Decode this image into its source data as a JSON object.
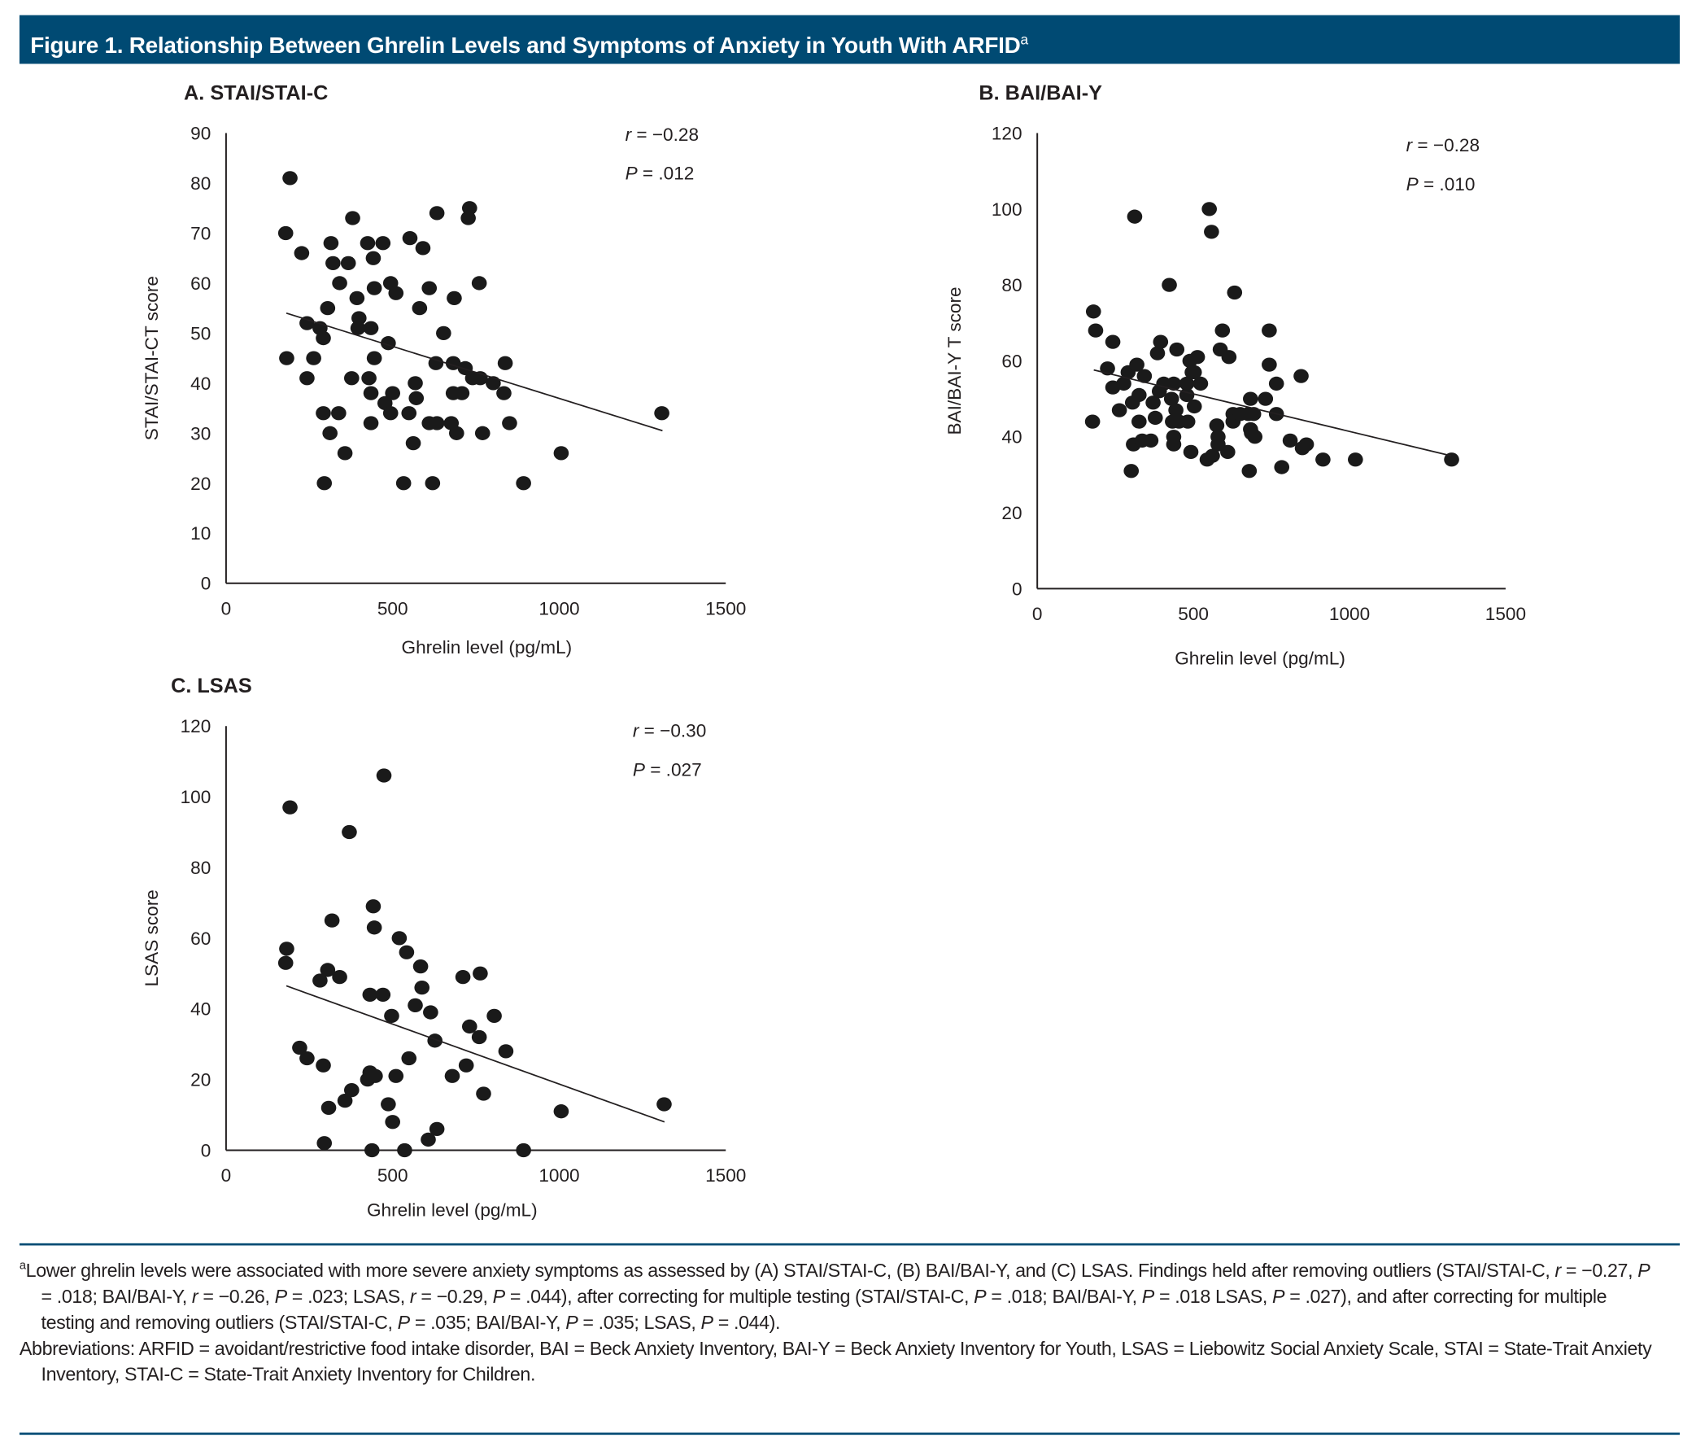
{
  "figure": {
    "title": "Figure 1. Relationship Between Ghrelin Levels and Symptoms of Anxiety in Youth With ARFID",
    "title_sup": "a",
    "header_color": "#004a73"
  },
  "chart_data": [
    {
      "type": "scatter",
      "title": "A. STAI/STAI-C",
      "xlabel": "Ghrelin level (pg/mL)",
      "ylabel": "STAI/STAI-CT score",
      "xlim": [
        0,
        1500
      ],
      "ylim": [
        0,
        90
      ],
      "xticks": [
        "0",
        "500",
        "1000",
        "1500"
      ],
      "yticks": [
        "0",
        "10",
        "20",
        "30",
        "40",
        "50",
        "60",
        "70",
        "80",
        "90"
      ],
      "grid": false,
      "stat_r": "−0.28",
      "stat_p": ".012",
      "trendline": [
        [
          181,
          54
        ],
        [
          1310,
          30.5
        ]
      ],
      "points": [
        [
          192,
          81
        ],
        [
          179,
          70
        ],
        [
          227,
          66
        ],
        [
          182,
          45
        ],
        [
          243,
          52
        ],
        [
          263,
          45
        ],
        [
          243,
          41
        ],
        [
          282,
          51
        ],
        [
          292,
          49
        ],
        [
          305,
          55
        ],
        [
          315,
          68
        ],
        [
          321,
          64
        ],
        [
          341,
          60
        ],
        [
          292,
          34
        ],
        [
          312,
          30
        ],
        [
          338,
          34
        ],
        [
          295,
          20
        ],
        [
          357,
          26
        ],
        [
          367,
          64
        ],
        [
          380,
          73
        ],
        [
          377,
          41
        ],
        [
          393,
          57
        ],
        [
          399,
          53
        ],
        [
          396,
          51
        ],
        [
          425,
          68
        ],
        [
          442,
          65
        ],
        [
          445,
          59
        ],
        [
          471,
          68
        ],
        [
          429,
          41
        ],
        [
          435,
          38
        ],
        [
          445,
          45
        ],
        [
          435,
          32
        ],
        [
          435,
          51
        ],
        [
          487,
          48
        ],
        [
          494,
          60
        ],
        [
          510,
          58
        ],
        [
          500,
          38
        ],
        [
          477,
          36
        ],
        [
          494,
          34
        ],
        [
          552,
          69
        ],
        [
          591,
          67
        ],
        [
          581,
          55
        ],
        [
          568,
          40
        ],
        [
          571,
          37
        ],
        [
          549,
          34
        ],
        [
          562,
          28
        ],
        [
          533,
          20
        ],
        [
          610,
          59
        ],
        [
          610,
          32
        ],
        [
          633,
          32
        ],
        [
          620,
          20
        ],
        [
          633,
          74
        ],
        [
          653,
          50
        ],
        [
          630,
          44
        ],
        [
          685,
          57
        ],
        [
          682,
          44
        ],
        [
          676,
          32
        ],
        [
          692,
          30
        ],
        [
          682,
          38
        ],
        [
          708,
          38
        ],
        [
          718,
          43
        ],
        [
          731,
          75
        ],
        [
          727,
          73
        ],
        [
          740,
          41
        ],
        [
          763,
          41
        ],
        [
          760,
          60
        ],
        [
          802,
          40
        ],
        [
          770,
          30
        ],
        [
          834,
          38
        ],
        [
          838,
          44
        ],
        [
          851,
          32
        ],
        [
          893,
          20
        ],
        [
          1006,
          26
        ],
        [
          1308,
          34
        ]
      ]
    },
    {
      "type": "scatter",
      "title": "B. BAI/BAI-Y",
      "xlabel": "Ghrelin level (pg/mL)",
      "ylabel": "BAI/BAI-Y T score",
      "xlim": [
        0,
        1500
      ],
      "ylim": [
        0,
        120
      ],
      "xticks": [
        "0",
        "500",
        "1000",
        "1500"
      ],
      "yticks": [
        "0",
        "20",
        "40",
        "60",
        "80",
        "100",
        "120"
      ],
      "grid": false,
      "stat_r": "−0.28",
      "stat_p": ".010",
      "trendline": [
        [
          181,
          57.6
        ],
        [
          1325,
          35
        ]
      ],
      "points": [
        [
          180,
          73
        ],
        [
          187,
          68
        ],
        [
          242,
          65
        ],
        [
          225,
          58
        ],
        [
          242,
          53
        ],
        [
          177,
          44
        ],
        [
          263,
          47
        ],
        [
          291,
          57
        ],
        [
          277,
          54
        ],
        [
          319,
          59
        ],
        [
          305,
          49
        ],
        [
          326,
          51
        ],
        [
          312,
          98
        ],
        [
          301,
          31
        ],
        [
          308,
          38
        ],
        [
          326,
          44
        ],
        [
          343,
          56
        ],
        [
          336,
          39
        ],
        [
          364,
          39
        ],
        [
          371,
          49
        ],
        [
          378,
          45
        ],
        [
          385,
          62
        ],
        [
          395,
          65
        ],
        [
          405,
          54
        ],
        [
          391,
          52
        ],
        [
          423,
          80
        ],
        [
          430,
          50
        ],
        [
          437,
          54
        ],
        [
          447,
          63
        ],
        [
          433,
          44
        ],
        [
          437,
          40
        ],
        [
          437,
          38
        ],
        [
          444,
          47
        ],
        [
          454,
          44
        ],
        [
          482,
          44
        ],
        [
          479,
          51
        ],
        [
          489,
          60
        ],
        [
          503,
          57
        ],
        [
          513,
          61
        ],
        [
          523,
          54
        ],
        [
          496,
          57
        ],
        [
          479,
          54
        ],
        [
          503,
          48
        ],
        [
          492,
          36
        ],
        [
          551,
          100
        ],
        [
          558,
          94
        ],
        [
          544,
          34
        ],
        [
          561,
          35
        ],
        [
          575,
          43
        ],
        [
          579,
          40
        ],
        [
          579,
          38
        ],
        [
          593,
          68
        ],
        [
          586,
          63
        ],
        [
          614,
          61
        ],
        [
          610,
          36
        ],
        [
          627,
          46
        ],
        [
          627,
          44
        ],
        [
          632,
          78
        ],
        [
          650,
          46
        ],
        [
          676,
          46
        ],
        [
          683,
          50
        ],
        [
          683,
          42
        ],
        [
          697,
          40
        ],
        [
          693,
          46
        ],
        [
          686,
          41
        ],
        [
          679,
          31
        ],
        [
          731,
          50
        ],
        [
          743,
          68
        ],
        [
          743,
          59
        ],
        [
          766,
          54
        ],
        [
          766,
          46
        ],
        [
          783,
          32
        ],
        [
          810,
          39
        ],
        [
          849,
          37
        ],
        [
          862,
          38
        ],
        [
          845,
          56
        ],
        [
          915,
          34
        ],
        [
          1019,
          34
        ],
        [
          1327,
          34
        ]
      ]
    },
    {
      "type": "scatter",
      "title": "C. LSAS",
      "xlabel": "Ghrelin level (pg/mL)",
      "ylabel": "LSAS score",
      "xlim": [
        0,
        1500
      ],
      "ylim": [
        0,
        120
      ],
      "xticks": [
        "0",
        "500",
        "1000",
        "1500"
      ],
      "yticks": [
        "0",
        "20",
        "40",
        "60",
        "80",
        "100",
        "120"
      ],
      "grid": false,
      "stat_r": "−0.30",
      "stat_p": ".027",
      "trendline": [
        [
          181,
          46.5
        ],
        [
          1316,
          8
        ]
      ],
      "points": [
        [
          182,
          57
        ],
        [
          179,
          53
        ],
        [
          192,
          97
        ],
        [
          221,
          29
        ],
        [
          243,
          26
        ],
        [
          282,
          48
        ],
        [
          305,
          51
        ],
        [
          292,
          24
        ],
        [
          308,
          12
        ],
        [
          295,
          2
        ],
        [
          318,
          65
        ],
        [
          341,
          49
        ],
        [
          357,
          14
        ],
        [
          377,
          17
        ],
        [
          370,
          90
        ],
        [
          425,
          20
        ],
        [
          432,
          22
        ],
        [
          448,
          21
        ],
        [
          432,
          44
        ],
        [
          471,
          44
        ],
        [
          442,
          69
        ],
        [
          445,
          63
        ],
        [
          438,
          0
        ],
        [
          474,
          106
        ],
        [
          497,
          38
        ],
        [
          487,
          13
        ],
        [
          500,
          8
        ],
        [
          510,
          21
        ],
        [
          520,
          60
        ],
        [
          542,
          56
        ],
        [
          549,
          26
        ],
        [
          536,
          0
        ],
        [
          568,
          41
        ],
        [
          584,
          52
        ],
        [
          588,
          46
        ],
        [
          614,
          39
        ],
        [
          607,
          3
        ],
        [
          627,
          31
        ],
        [
          633,
          6
        ],
        [
          679,
          21
        ],
        [
          711,
          49
        ],
        [
          721,
          24
        ],
        [
          731,
          35
        ],
        [
          760,
          32
        ],
        [
          763,
          50
        ],
        [
          773,
          16
        ],
        [
          805,
          38
        ],
        [
          840,
          28
        ],
        [
          893,
          0
        ],
        [
          1006,
          11
        ],
        [
          1315,
          13
        ]
      ]
    }
  ],
  "footnote": {
    "marker": "a",
    "segments": [
      {
        "t": "Lower ghrelin levels were associated with more severe anxiety symptoms as assessed by (A) STAI/STAI-C, (B) BAI/BAI-Y, and (C) LSAS. Findings held after removing outliers (STAI/STAI-C, "
      },
      {
        "t": "r",
        "i": true
      },
      {
        "t": " = −0.27, "
      },
      {
        "t": "P",
        "i": true
      },
      {
        "t": " = .018; BAI/BAI-Y, "
      },
      {
        "t": "r",
        "i": true
      },
      {
        "t": " = −0.26, "
      },
      {
        "t": "P",
        "i": true
      },
      {
        "t": " = .023; LSAS, "
      },
      {
        "t": "r",
        "i": true
      },
      {
        "t": " = −0.29, "
      },
      {
        "t": "P",
        "i": true
      },
      {
        "t": " = .044), after correcting for multiple testing (STAI/STAI-C, "
      },
      {
        "t": "P",
        "i": true
      },
      {
        "t": " = .018; BAI/BAI-Y, "
      },
      {
        "t": "P",
        "i": true
      },
      {
        "t": " = .018 LSAS, "
      },
      {
        "t": "P",
        "i": true
      },
      {
        "t": " = .027), and after correcting for multiple testing and removing outliers (STAI/STAI-C, "
      },
      {
        "t": "P",
        "i": true
      },
      {
        "t": " = .035; BAI/BAI-Y, "
      },
      {
        "t": "P",
        "i": true
      },
      {
        "t": " = .035; LSAS, "
      },
      {
        "t": "P",
        "i": true
      },
      {
        "t": " = .044)."
      }
    ],
    "abbreviations": "Abbreviations: ARFID = avoidant/restrictive food intake disorder, BAI = Beck Anxiety Inventory, BAI-Y = Beck Anxiety Inventory for Youth, LSAS = Liebowitz Social Anxiety Scale, STAI = State-Trait Anxiety Inventory, STAI-C = State-Trait Anxiety Inventory for Children."
  }
}
